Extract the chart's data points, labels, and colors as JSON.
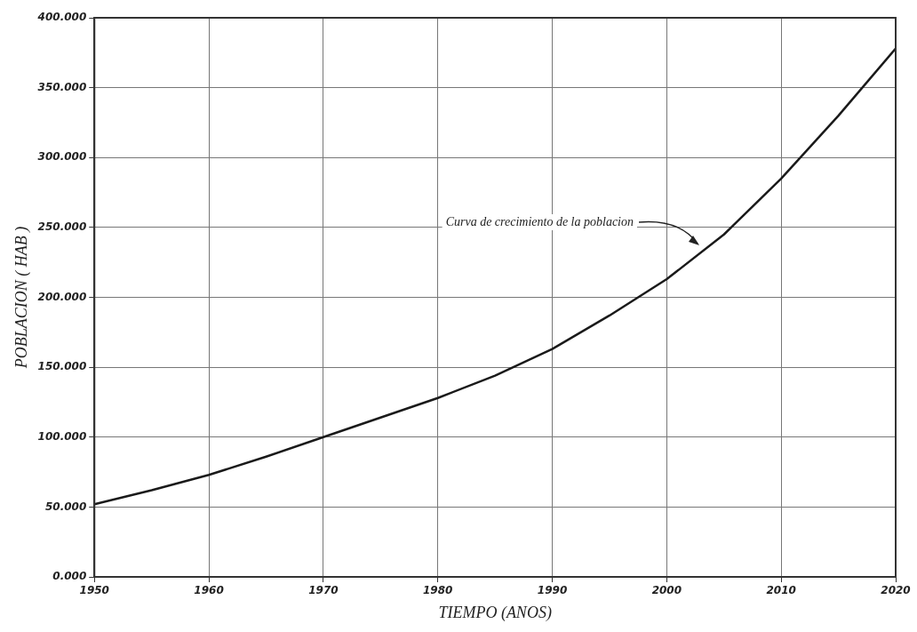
{
  "chart_data": {
    "type": "line",
    "xlabel": "TIEMPO (ANOS)",
    "ylabel": "POBLACION ( HAB )",
    "x": [
      1950,
      1955,
      1960,
      1965,
      1970,
      1975,
      1980,
      1985,
      1990,
      1995,
      2000,
      2005,
      2010,
      2015,
      2020
    ],
    "series": [
      {
        "color": "#1a1a1a",
        "values": [
          52,
          62,
          73,
          86,
          100,
          114,
          128,
          144,
          163,
          187,
          213,
          245,
          285,
          330,
          378
        ]
      }
    ],
    "xlim": [
      1950,
      2020
    ],
    "xticks": [
      1950,
      1960,
      1970,
      1980,
      1990,
      2000,
      2010,
      2020
    ],
    "ylim": [
      0,
      400
    ],
    "yticks": [
      {
        "value": 0,
        "label": "0.000"
      },
      {
        "value": 50,
        "label": "50.000"
      },
      {
        "value": 100,
        "label": "100.000"
      },
      {
        "value": 150,
        "label": "150.000"
      },
      {
        "value": 200,
        "label": "200.000"
      },
      {
        "value": 250,
        "label": "250.000"
      },
      {
        "value": 300,
        "label": "300.000"
      },
      {
        "value": 350,
        "label": "350.000"
      },
      {
        "value": 400,
        "label": "400.000"
      }
    ],
    "annotations": [
      {
        "text": "Curva de crecimiento de la poblacion",
        "x": 2003,
        "y": 236
      }
    ],
    "grid": true,
    "marker": "none",
    "line_style": "solid",
    "legend": false
  }
}
